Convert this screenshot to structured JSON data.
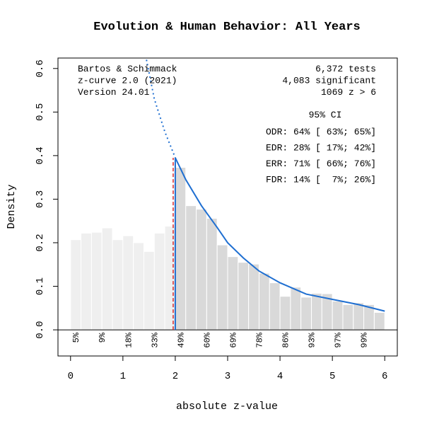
{
  "chart_data": {
    "type": "histogram",
    "title": "Evolution & Human Behavior: All Years",
    "x_label": "absolute z-value",
    "y_label": "Density",
    "bins": [
      0,
      0.2,
      0.4,
      0.6,
      0.8,
      1.0,
      1.2,
      1.4,
      1.6,
      1.8,
      2.0,
      2.2,
      2.4,
      2.6,
      2.8,
      3.0,
      3.2,
      3.4,
      3.6,
      3.8,
      4.0,
      4.2,
      4.4,
      4.6,
      4.8,
      5.0,
      5.2,
      5.4,
      5.6,
      5.8,
      6.0
    ],
    "values": [
      0.207,
      0.222,
      0.224,
      0.234,
      0.207,
      0.216,
      0.2,
      0.18,
      0.222,
      0.238,
      0.373,
      0.285,
      0.277,
      0.256,
      0.195,
      0.168,
      0.155,
      0.151,
      0.13,
      0.108,
      0.077,
      0.098,
      0.075,
      0.084,
      0.083,
      0.066,
      0.058,
      0.062,
      0.058,
      0.04
    ],
    "colors": [
      "#efefef",
      "#d9d9d9"
    ],
    "critical_z": 1.96,
    "critical_color": "#d62728",
    "curve_color": "#1f6fd1",
    "curve": {
      "x": [
        2.0,
        2.2,
        2.5,
        2.8,
        3.0,
        3.3,
        3.6,
        4.0,
        4.5,
        5.0,
        5.5,
        6.0
      ],
      "values": [
        0.395,
        0.345,
        0.285,
        0.235,
        0.2,
        0.165,
        0.135,
        0.108,
        0.082,
        0.07,
        0.058,
        0.043
      ]
    },
    "extrapolated_curve": {
      "x": [
        1.45,
        1.6,
        1.8,
        2.0
      ],
      "values": [
        0.62,
        0.53,
        0.455,
        0.395
      ]
    },
    "power_labels": {
      "x": [
        0.1,
        0.6,
        1.1,
        1.6,
        2.1,
        2.6,
        3.1,
        3.6,
        4.1,
        4.6,
        5.1,
        5.6
      ],
      "labels": [
        "5%",
        "9%",
        "18%",
        "33%",
        "49%",
        "60%",
        "69%",
        "78%",
        "86%",
        "93%",
        "97%",
        "99%"
      ]
    },
    "xlim": [
      -0.24,
      6.24
    ],
    "ylim": [
      -0.06,
      0.624
    ],
    "xticks": [
      0,
      1,
      2,
      3,
      4,
      5,
      6
    ],
    "yticks": [
      {
        "value": 0,
        "label": "0.0"
      },
      {
        "value": 0.1,
        "label": "0.1"
      },
      {
        "value": 0.2,
        "label": "0.2"
      },
      {
        "value": 0.3,
        "label": "0.3"
      },
      {
        "value": 0.4,
        "label": "0.4"
      },
      {
        "value": 0.5,
        "label": "0.5"
      },
      {
        "value": 0.6,
        "label": "0.6"
      }
    ],
    "annotations_left": [
      "Bartos & Schimmack",
      "z-curve 2.0 (2021)",
      "Version 24.01"
    ],
    "annotations_right": [
      "6,372 tests",
      "4,083 significant",
      "1069 z > 6"
    ],
    "ci_header": "95% CI",
    "ci_rows": [
      "ODR: 64% [ 63%; 65%]",
      "EDR: 28% [ 17%; 42%]",
      "ERR: 71% [ 66%; 76%]",
      "FDR: 14% [  7%; 26%]"
    ]
  }
}
